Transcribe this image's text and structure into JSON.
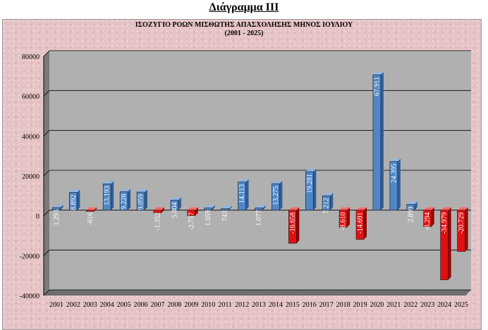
{
  "page": {
    "title": "Διάγραμμα ΙΙΙ"
  },
  "chart_data": {
    "type": "bar",
    "title": "ΙΣΟΖΥΓΙΟ ΡΟΩΝ ΜΙΣΘΩΤΗΣ ΑΠΑΣΧΟΛΗΣΗΣ ΜΗΝΟΣ ΙΟΥΛΙΟΥ",
    "subtitle": "(2001 - 2025)",
    "categories": [
      "2001",
      "2002",
      "2003",
      "2004",
      "2005",
      "2006",
      "2007",
      "2008",
      "2009",
      "2010",
      "2011",
      "2012",
      "2013",
      "2014",
      "2015",
      "2016",
      "2017",
      "2018",
      "2019",
      "2020",
      "2021",
      "2022",
      "2023",
      "2024",
      "2025"
    ],
    "values": [
      1293,
      8892,
      -616,
      13193,
      9228,
      9059,
      -1352,
      5004,
      -2757,
      1059,
      743,
      14113,
      1077,
      13275,
      -16658,
      19281,
      7212,
      -8610,
      -14691,
      67911,
      24395,
      2899,
      -8294,
      -34979,
      -20729
    ],
    "value_labels": [
      "1.293",
      "8.892",
      "-616",
      "13.193",
      "9.228",
      "9.059",
      "-1.352",
      "5.004",
      "-2.757",
      "1.059",
      "743",
      "14.113",
      "1.077",
      "13.275",
      "-16.658",
      "19.281",
      "7.212",
      "-8.610",
      "-14.691",
      "67.911",
      "24.395",
      "2.899",
      "-8.294",
      "-34.979",
      "-20.729"
    ],
    "y_ticks": [
      80000,
      60000,
      40000,
      20000,
      0,
      -20000,
      -40000
    ],
    "y_tick_labels": [
      "80000",
      "60000",
      "40000",
      "20000",
      "0",
      "-20000",
      "-40000"
    ],
    "ylim": [
      -40000,
      80000
    ],
    "grid": true,
    "legend": "none",
    "colors": {
      "positive": "#4f86c6",
      "negative": "#e01010",
      "plot_bg": "#b0b0b0",
      "frame_bg": "#e6c3c6"
    }
  }
}
